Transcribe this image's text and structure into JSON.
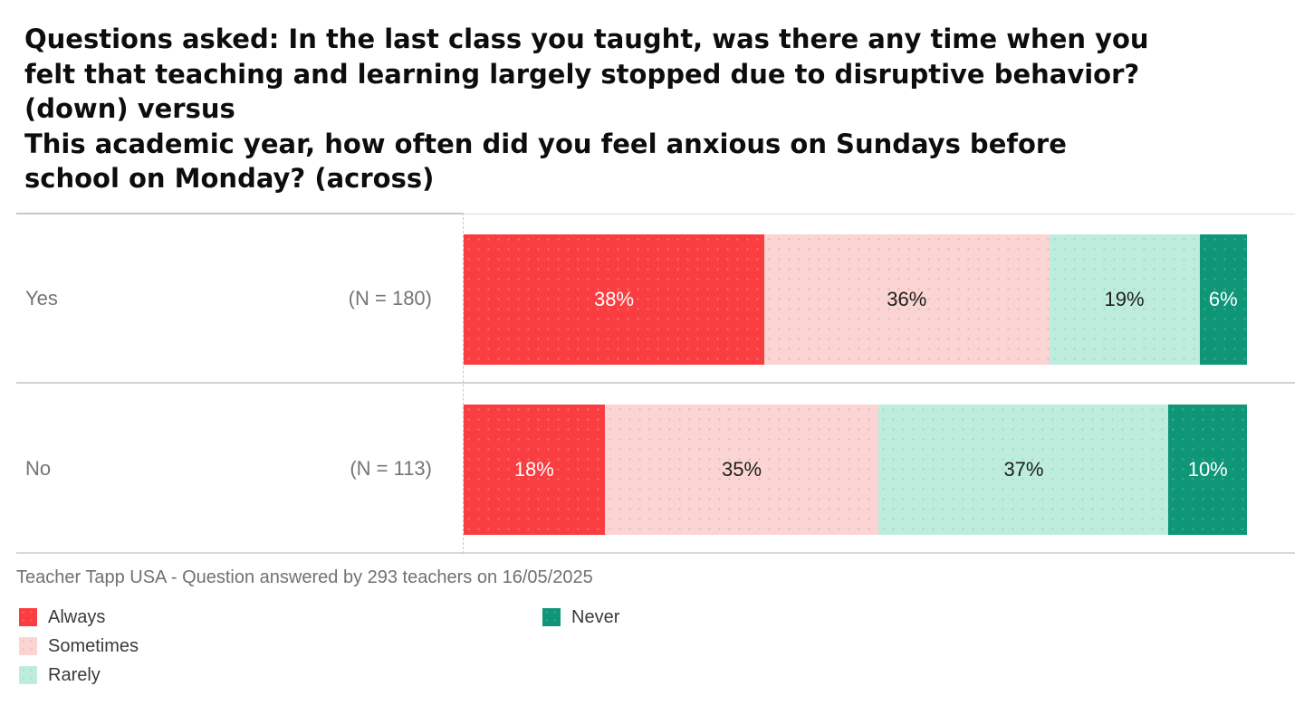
{
  "title": "Questions asked: In the last class you taught, was there any time when you\nfelt that teaching and learning largely stopped due to disruptive behavior?\n(down) versus\nThis academic year, how often did you feel anxious on Sundays before\nschool on Monday? (across)",
  "footer": "Teacher Tapp USA - Question answered by 293 teachers on 16/05/2025",
  "chart_data": {
    "type": "bar",
    "orientation": "horizontal",
    "stacked": true,
    "title": "Questions asked: In the last class you taught, was there any time when you felt that teaching and learning largely stopped due to disruptive behavior? (down) versus This academic year, how often did you feel anxious on Sundays before school on Monday? (across)",
    "categories": [
      "Yes",
      "No"
    ],
    "category_counts": [
      "(N = 180)",
      "(N = 113)"
    ],
    "series": [
      {
        "name": "Always",
        "color": "#FA3D40",
        "text_color": "#ffffff",
        "dot_color": "rgba(255,255,255,0.22)",
        "values": [
          38,
          18
        ]
      },
      {
        "name": "Sometimes",
        "color": "#FAD5D4",
        "text_color": "#1d1d1d",
        "dot_color": "rgba(231,140,140,0.40)",
        "values": [
          36,
          35
        ]
      },
      {
        "name": "Rarely",
        "color": "#BFEDDD",
        "text_color": "#1d1d1d",
        "dot_color": "rgba(110,199,172,0.40)",
        "values": [
          19,
          37
        ]
      },
      {
        "name": "Never",
        "color": "#0F9677",
        "text_color": "#ffffff",
        "dot_color": "rgba(255,255,255,0.18)",
        "values": [
          6,
          10
        ]
      }
    ],
    "value_suffix": "%",
    "value_format": "percent",
    "xlim": [
      0,
      100
    ],
    "grid": "off",
    "legend_position": "bottom-left"
  },
  "legend": {
    "items": [
      {
        "label": "Always",
        "color": "#FA3D40",
        "dot_color": "rgba(255,255,255,0.22)"
      },
      {
        "label": "Sometimes",
        "color": "#FAD5D4",
        "dot_color": "rgba(231,140,140,0.40)"
      },
      {
        "label": "Rarely",
        "color": "#BFEDDD",
        "dot_color": "rgba(110,199,172,0.40)"
      },
      {
        "label": "Never",
        "color": "#0F9677",
        "dot_color": "rgba(255,255,255,0.18)"
      }
    ]
  },
  "colors": {
    "always": "#FA3D40",
    "sometimes": "#FAD5D4",
    "rarely": "#BFEDDD",
    "never": "#0F9677",
    "divider": "#d3d3d3",
    "label_gray": "#757575"
  }
}
